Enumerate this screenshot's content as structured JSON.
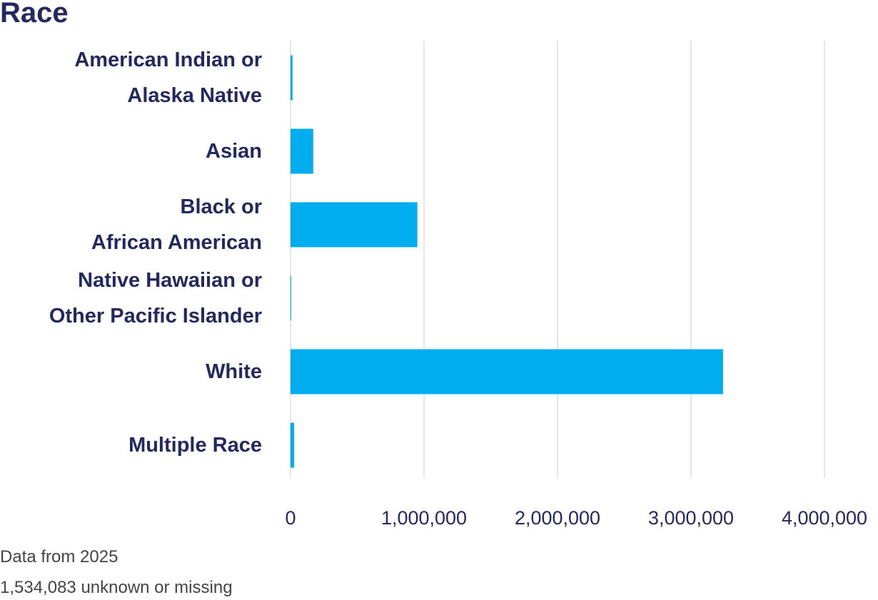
{
  "chart_data": {
    "type": "bar",
    "orientation": "horizontal",
    "title": "Race",
    "categories": [
      "American Indian or\nAlaska Native",
      "Asian",
      "Black or\nAfrican American",
      "Native Hawaiian or\nOther Pacific Islander",
      "White",
      "Multiple Race"
    ],
    "values": [
      15000,
      170000,
      950000,
      4000,
      3240000,
      27000
    ],
    "color": "#00aeef",
    "xlim": [
      0,
      4000000
    ],
    "xticks": [
      0,
      {
        "value": 1000000,
        "label": "1,000,000"
      },
      {
        "value": 2000000,
        "label": "2,000,000"
      },
      {
        "value": 3000000,
        "label": "3,000,000"
      },
      {
        "value": 4000000,
        "label": "4,000,000"
      }
    ],
    "grid": true,
    "notes": [
      "Data from 2025",
      "1,534,083 unknown or missing"
    ]
  }
}
